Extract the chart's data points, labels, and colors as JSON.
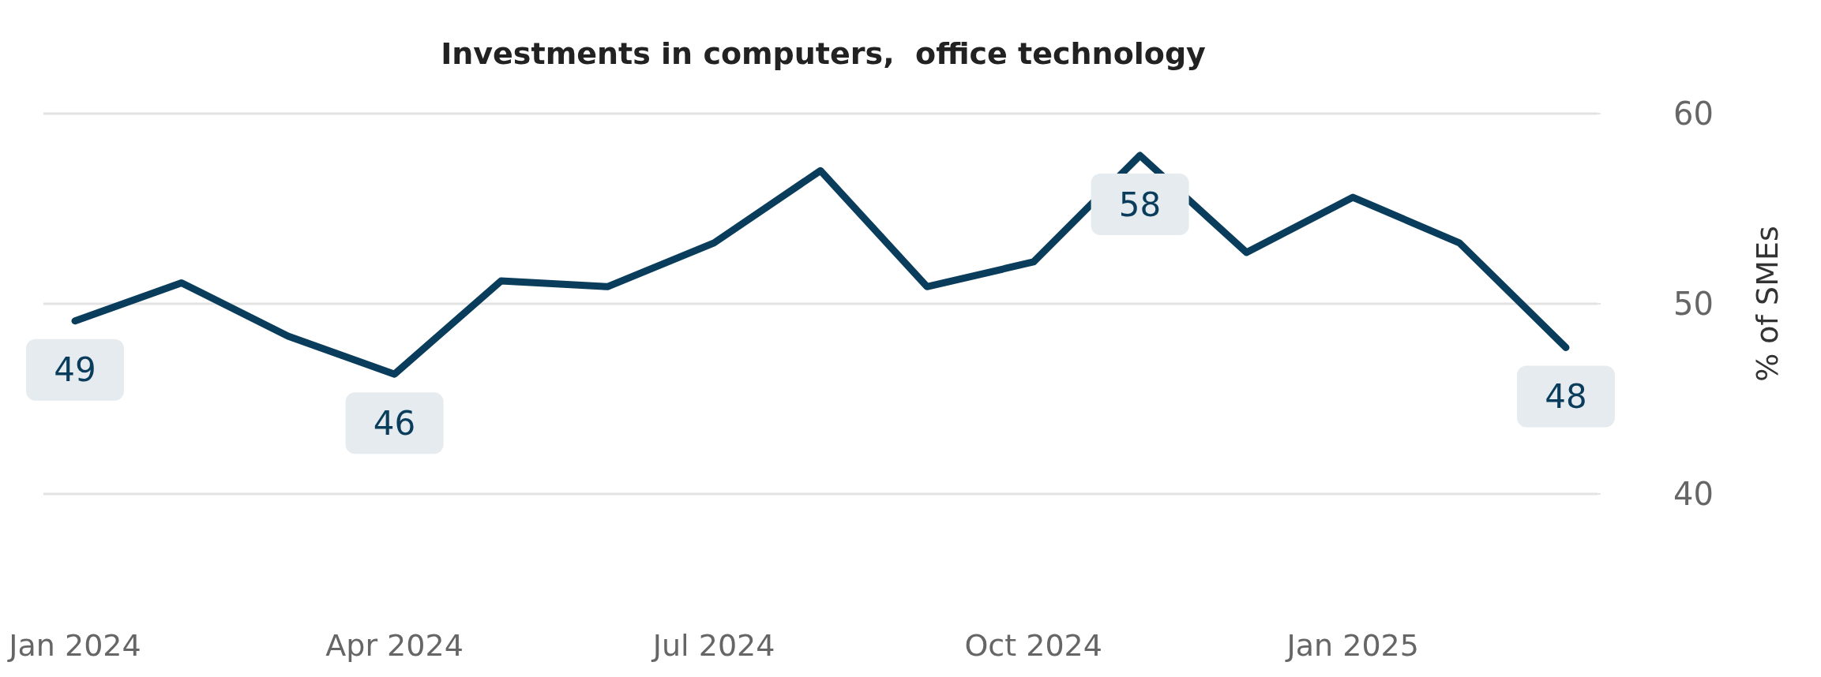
{
  "chart_data": {
    "type": "line",
    "title": "Investments in computers,  office technology",
    "ylabel": "% of SMEs",
    "categories": [
      "Jan 2024",
      null,
      null,
      "Apr 2024",
      null,
      null,
      "Jul 2024",
      null,
      null,
      "Oct 2024",
      null,
      null,
      "Jan 2025",
      null,
      null
    ],
    "series": [
      {
        "color": "#0a3d5c",
        "values": [
          49.1,
          51.1,
          48.3,
          46.3,
          51.2,
          50.9,
          53.2,
          57.0,
          50.9,
          52.2,
          57.8,
          52.7,
          55.6,
          53.2,
          47.7
        ],
        "value_labels": [
          "49",
          null,
          null,
          "46",
          null,
          null,
          null,
          null,
          null,
          null,
          "58",
          null,
          null,
          null,
          "48"
        ]
      }
    ],
    "ylim": [
      40,
      60
    ],
    "yticks": [
      40,
      50,
      60
    ],
    "grid": "y",
    "marker": "none",
    "line_style": "solid"
  }
}
